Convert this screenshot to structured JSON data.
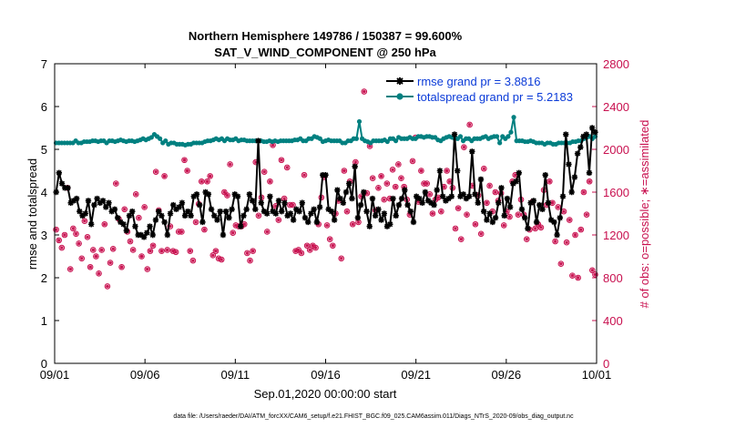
{
  "chart_data": {
    "type": "line",
    "title_line1": "Northern Hemisphere 149786 / 150387 = 99.600%",
    "title_line2": "SAT_V_WIND_COMPONENT @ 250 hPa",
    "xlabel": "Sep.01,2020 00:00:00 start",
    "ylabel_left": "rmse and totalspread",
    "ylabel_right": "# of obs: o=possible; ∗=assimilated",
    "footer": "data file: /Users/raeder/DAI/ATM_forcXX/CAM6_setup/f.e21.FHIST_BGC.f09_025.CAM6assim.011/Diags_NTrS_2020-09/obs_diag_output.nc",
    "x_ticks": [
      "09/01",
      "09/06",
      "09/11",
      "09/16",
      "09/21",
      "09/26",
      "10/01"
    ],
    "x_range": [
      0,
      30
    ],
    "y_left_range": [
      0,
      7
    ],
    "y_left_ticks": [
      "0",
      "1",
      "2",
      "3",
      "4",
      "5",
      "6",
      "7"
    ],
    "y_right_range": [
      0,
      2800
    ],
    "y_right_ticks": [
      "0",
      "400",
      "800",
      "1200",
      "1600",
      "2000",
      "2400",
      "2800"
    ],
    "legend_location": "top-right",
    "colors": {
      "rmse": "#000000",
      "spread": "#008080",
      "obs": "#c8104f",
      "legend_text": "#0b3bd8"
    },
    "series": [
      {
        "name": "rmse grand pr = 3.8816",
        "values": [
          4.0,
          4.45,
          4.2,
          4.1,
          4.1,
          3.75,
          3.8,
          3.85,
          3.55,
          3.45,
          3.5,
          3.8,
          3.25,
          3.7,
          3.85,
          3.75,
          3.8,
          3.65,
          3.75,
          3.55,
          3.6,
          3.4,
          3.3,
          3.25,
          3.1,
          3.45,
          3.55,
          3.2,
          3.0,
          3.0,
          2.95,
          3.05,
          3.2,
          3.0,
          3.35,
          3.55,
          3.45,
          3.3,
          3.0,
          3.5,
          3.7,
          3.6,
          3.65,
          3.75,
          3.45,
          3.55,
          3.45,
          3.9,
          3.95,
          3.7,
          3.3,
          4.0,
          3.95,
          3.6,
          3.45,
          3.35,
          3.55,
          3.0,
          3.55,
          3.4,
          3.6,
          3.95,
          3.9,
          3.2,
          3.45,
          3.6,
          3.95,
          3.8,
          3.6,
          5.2,
          3.75,
          3.55,
          3.5,
          3.9,
          3.55,
          3.5,
          3.8,
          3.55,
          3.75,
          3.45,
          3.5,
          3.35,
          3.6,
          3.55,
          3.75,
          3.4,
          3.3,
          3.5,
          3.6,
          3.3,
          3.65,
          4.4,
          4.4,
          3.6,
          3.55,
          3.35,
          4.05,
          3.85,
          3.75,
          4.0,
          4.2,
          3.85,
          4.6,
          3.4,
          3.7,
          4.0,
          3.55,
          3.2,
          3.85,
          3.45,
          3.6,
          3.35,
          3.5,
          3.2,
          3.25,
          3.85,
          3.45,
          3.7,
          3.85,
          4.05,
          3.7,
          3.55,
          3.3,
          3.9,
          3.85,
          3.75,
          4.0,
          3.8,
          3.75,
          3.7,
          4.05,
          4.5,
          3.9,
          3.8,
          3.85,
          3.9,
          5.35,
          4.5,
          3.9,
          3.95,
          3.85,
          3.9,
          4.95,
          3.95,
          3.75,
          4.3,
          3.55,
          3.35,
          3.5,
          3.3,
          3.4,
          3.75,
          4.1,
          3.45,
          3.85,
          3.65,
          4.2,
          4.25,
          4.45,
          3.6,
          3.4,
          3.15,
          3.75,
          3.8,
          3.3,
          3.7,
          3.6,
          4.4,
          3.75,
          3.35,
          3.3,
          3.0,
          3.4,
          3.9,
          5.35,
          4.65,
          4.0,
          4.35,
          4.9,
          5.05,
          5.3,
          5.35,
          4.45,
          5.5,
          5.4
        ]
      },
      {
        "name": "totalspread grand pr = 5.2183",
        "values": [
          5.15,
          5.15,
          5.15,
          5.15,
          5.15,
          5.15,
          5.15,
          5.2,
          5.15,
          5.15,
          5.18,
          5.18,
          5.18,
          5.2,
          5.2,
          5.18,
          5.2,
          5.2,
          5.15,
          5.2,
          5.2,
          5.18,
          5.2,
          5.22,
          5.2,
          5.18,
          5.2,
          5.2,
          5.18,
          5.2,
          5.22,
          5.25,
          5.22,
          5.25,
          5.28,
          5.35,
          5.3,
          5.25,
          5.15,
          5.2,
          5.12,
          5.15,
          5.15,
          5.12,
          5.12,
          5.12,
          5.1,
          5.12,
          5.12,
          5.15,
          5.15,
          5.15,
          5.15,
          5.18,
          5.2,
          5.2,
          5.22,
          5.25,
          5.22,
          5.25,
          5.2,
          5.25,
          5.22,
          5.22,
          5.25,
          5.2,
          5.22,
          5.22,
          5.2,
          5.2,
          5.2,
          5.2,
          5.2,
          5.2,
          5.18,
          5.18,
          5.2,
          5.18,
          5.2,
          5.18,
          5.2,
          5.2,
          5.2,
          5.2,
          5.2,
          5.22,
          5.22,
          5.25,
          5.2,
          5.2,
          5.25,
          5.25,
          5.3,
          5.28,
          5.25,
          5.18,
          5.2,
          5.22,
          5.2,
          5.2,
          5.2,
          5.2,
          5.15,
          5.15,
          5.2,
          5.2,
          5.25,
          5.25,
          5.65,
          5.25,
          5.2,
          5.18,
          5.15,
          5.2,
          5.2,
          5.2,
          5.2,
          5.22,
          5.18,
          5.25,
          5.25,
          5.2,
          5.28,
          5.25,
          5.25,
          5.25,
          5.28,
          5.25,
          5.25,
          5.3,
          5.3,
          5.28,
          5.3,
          5.3,
          5.28,
          5.28,
          5.22,
          5.2,
          5.25,
          5.28,
          5.3,
          5.28,
          5.25,
          5.25,
          5.3,
          5.2,
          5.25,
          5.25,
          5.2,
          5.25,
          5.25,
          5.25,
          5.28,
          5.3,
          5.25,
          5.28,
          5.3,
          5.3,
          5.15,
          5.3,
          5.25,
          5.3,
          5.4,
          5.75,
          5.2,
          5.2,
          5.2,
          5.18,
          5.18,
          5.2,
          5.18,
          5.15,
          5.15,
          5.15,
          5.12,
          5.15,
          5.15,
          5.12,
          5.12,
          5.15,
          5.15,
          5.15,
          5.15,
          5.15,
          5.18,
          5.18,
          5.2,
          5.2,
          5.25,
          5.28,
          5.3,
          5.25,
          5.3
        ]
      },
      {
        "name": "obs_possible",
        "values": [
          1250,
          1150,
          1080,
          1200,
          1640,
          880,
          1260,
          1210,
          1120,
          980,
          1330,
          1180,
          900,
          1060,
          1000,
          840,
          1060,
          1300,
          720,
          940,
          1070,
          1680,
          1350,
          900,
          1440,
          1230,
          1140,
          1060,
          1580,
          1360,
          1000,
          1460,
          880,
          1050,
          1100,
          1790,
          1430,
          1050,
          1750,
          1060,
          1280,
          1050,
          1040,
          1230,
          1230,
          1900,
          1800,
          1050,
          960,
          1320,
          1490,
          1700,
          1250,
          1700,
          1750,
          1010,
          1050,
          980,
          970,
          1600,
          1570,
          1860,
          1220,
          1290,
          1280,
          1280,
          1300,
          1030,
          960,
          1050,
          1880,
          1380,
          1550,
          1790,
          1230,
          1700,
          2040,
          1470,
          1340,
          1900,
          1540,
          1830,
          1480,
          1480,
          1050,
          1060,
          1030,
          1760,
          1100,
          1060,
          1100,
          1080,
          1300,
          1550,
          1740,
          1290,
          1160,
          1100,
          1400,
          1520,
          980,
          1800,
          1420,
          1700,
          1300,
          1880,
          1320,
          1560,
          2540,
          1590,
          2030,
          1730,
          1430,
          1640,
          1750,
          1530,
          1680,
          1540,
          1810,
          1650,
          1860,
          1730,
          1650,
          1530,
          1390,
          1890,
          2110,
          1510,
          1800,
          1680,
          1680,
          1580,
          1400,
          1530,
          1550,
          1420,
          1650,
          1800,
          1700,
          1640,
          1260,
          1450,
          1160,
          2020,
          1390,
          2230,
          1660,
          1300,
          1570,
          1210,
          1820,
          1500,
          1660,
          1420,
          1600,
          1520,
          1590,
          1290,
          1420,
          1370,
          1700,
          1760,
          1390,
          1530,
          1390,
          1160,
          1250,
          1510,
          1260,
          1300,
          1270,
          1620,
          1480,
          1700,
          1500,
          1140,
          1460,
          930,
          1420,
          1130,
          1340,
          820,
          1200,
          800,
          1250,
          1600,
          1390,
          1700,
          870,
          830
        ]
      },
      {
        "name": "obs_assimilated",
        "values": [
          1250,
          1150,
          1080,
          1200,
          1640,
          880,
          1260,
          1210,
          1120,
          980,
          1330,
          1180,
          900,
          1060,
          1000,
          840,
          1060,
          1300,
          720,
          940,
          1070,
          1680,
          1350,
          900,
          1440,
          1230,
          1140,
          1060,
          1580,
          1360,
          1000,
          1460,
          880,
          1050,
          1100,
          1790,
          1430,
          1050,
          1750,
          1060,
          1280,
          1050,
          1040,
          1230,
          1230,
          1900,
          1800,
          1050,
          960,
          1320,
          1490,
          1700,
          1250,
          1700,
          1750,
          1010,
          1050,
          980,
          970,
          1600,
          1570,
          1860,
          1220,
          1290,
          1280,
          1280,
          1300,
          1030,
          960,
          1050,
          1880,
          1380,
          1550,
          1790,
          1230,
          1700,
          2040,
          1470,
          1340,
          1900,
          1540,
          1830,
          1480,
          1480,
          1050,
          1060,
          1030,
          1760,
          1100,
          1060,
          1100,
          1080,
          1300,
          1550,
          1740,
          1290,
          1160,
          1100,
          1400,
          1520,
          980,
          1800,
          1420,
          1700,
          1300,
          1880,
          1320,
          1560,
          2540,
          1590,
          2030,
          1730,
          1430,
          1640,
          1750,
          1530,
          1680,
          1540,
          1810,
          1650,
          1860,
          1730,
          1650,
          1530,
          1390,
          1890,
          2110,
          1510,
          1800,
          1680,
          1680,
          1580,
          1400,
          1530,
          1550,
          1420,
          1650,
          1800,
          1700,
          1640,
          1260,
          1450,
          1160,
          2020,
          1390,
          2230,
          1660,
          1300,
          1570,
          1210,
          1820,
          1500,
          1660,
          1420,
          1600,
          1520,
          1590,
          1290,
          1420,
          1370,
          1700,
          1760,
          1390,
          1530,
          1390,
          1160,
          1250,
          1510,
          1260,
          1300,
          1270,
          1620,
          1480,
          1700,
          1500,
          1140,
          1460,
          930,
          1420,
          1130,
          1340,
          820,
          1200,
          800,
          1250,
          1600,
          1390,
          1700,
          870,
          830
        ]
      }
    ]
  }
}
